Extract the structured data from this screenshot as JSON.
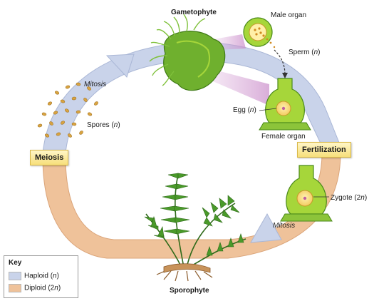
{
  "labels": {
    "gametophyte": "Gametophyte",
    "male_organ": "Male organ",
    "sperm": "Sperm (",
    "sperm_n": "n",
    "egg": "Egg (",
    "egg_n": "n",
    "female_organ": "Female organ",
    "fertilization": "Fertilization",
    "zygote": "Zygote (2",
    "zygote_n": "n",
    "mitosis_bottom": "Mitosis",
    "sporophyte": "Sporophyte",
    "meiosis": "Meiosis",
    "spores": "Spores (",
    "spores_n": "n",
    "mitosis_top": "Mitosis",
    "close_paren": ")"
  },
  "key": {
    "title": "Key",
    "haploid": "Haploid (",
    "haploid_n": "n",
    "diploid": "Diploid (2",
    "diploid_n": "n",
    "close_paren": ")"
  },
  "colors": {
    "haploid": "#c9d3ea",
    "diploid": "#efc29a",
    "plant_green": "#6fb02e",
    "bright_green": "#a6d63a",
    "spore": "#d9a441",
    "label_box": "#f7df7a"
  }
}
